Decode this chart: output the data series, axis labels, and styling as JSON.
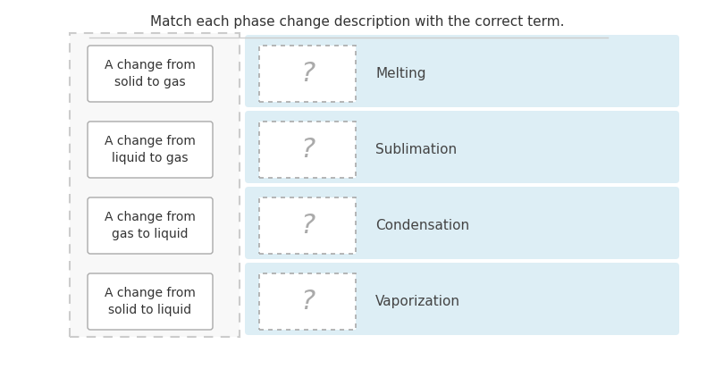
{
  "title": "Match each phase change description with the correct term.",
  "title_fontsize": 11,
  "title_color": "#333333",
  "background_color": "#ffffff",
  "left_descriptions": [
    "A change from\nsolid to gas",
    "A change from\nliquid to gas",
    "A change from\ngas to liquid",
    "A change from\nsolid to liquid"
  ],
  "right_terms": [
    "Melting",
    "Sublimation",
    "Condensation",
    "Vaporization"
  ],
  "left_panel_bg": "#f5f5f5",
  "left_panel_border": "#cccccc",
  "right_panel_bg": "#ddeef5",
  "right_panel_border": "#b0cfe0",
  "desc_box_bg": "#ffffff",
  "desc_box_border": "#aaaaaa",
  "qmark_box_bg": "#ffffff",
  "qmark_box_border": "#aaaaaa",
  "qmark_color": "#aaaaaa",
  "qmark_fontsize": 22,
  "desc_fontsize": 10,
  "term_fontsize": 11,
  "term_color": "#444444",
  "desc_color": "#333333",
  "separator_color": "#cccccc"
}
